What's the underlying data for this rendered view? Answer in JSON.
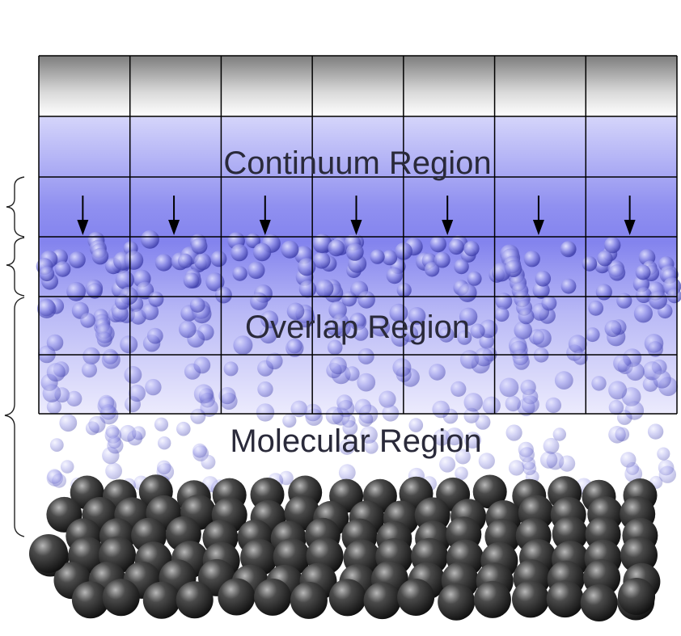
{
  "labels": {
    "continuum": "Continuum Region",
    "overlap": "Overlap Region",
    "molecular": "Molecular Region"
  },
  "grid": {
    "columns": 7,
    "rows": 6
  },
  "colors": {
    "continuum_blue": "#6b6bef",
    "molecule_blue": "#8a8ae6",
    "wall_atom": "#2b2b2b",
    "grid_line": "#000000",
    "wall_band": "#8f8f8f"
  },
  "icons": {
    "flux_arrow": "arrow-down-icon",
    "brace": "curly-brace-icon",
    "molecule": "sphere-icon",
    "wall_atom": "dark-sphere-icon"
  }
}
